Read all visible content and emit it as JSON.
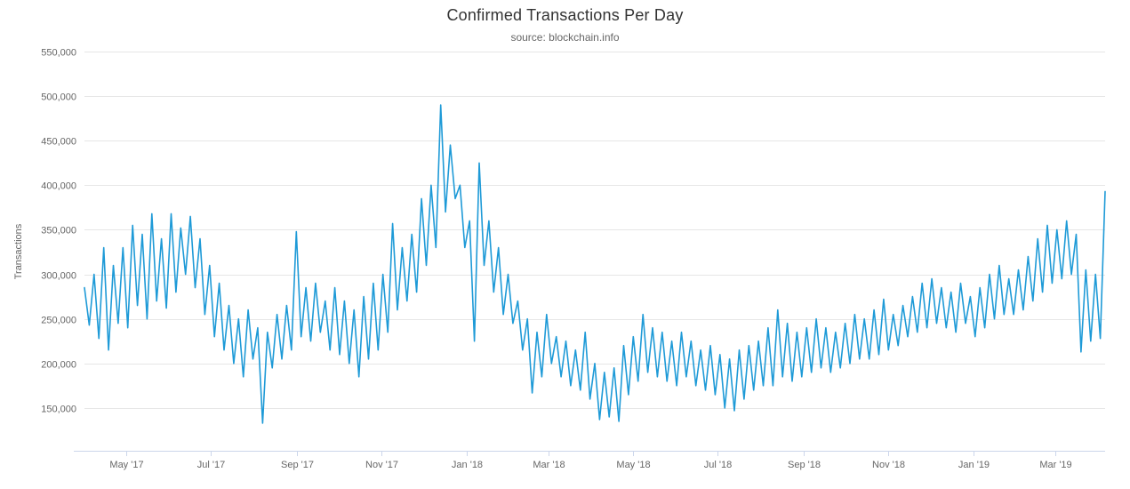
{
  "title": "Confirmed Transactions Per Day",
  "subtitle": "source: blockchain.info",
  "y_axis_title": "Transactions",
  "colors": {
    "line": "#1E9AD7",
    "grid": "#e6e6e6",
    "axis_line": "#ccd6eb",
    "title_text": "#333333",
    "subtitle_text": "#666666",
    "axis_label_text": "#666666"
  },
  "chart_data": {
    "type": "line",
    "title": "Confirmed Transactions Per Day",
    "subtitle": "source: blockchain.info",
    "xlabel": "",
    "ylabel": "Transactions",
    "legend": "none",
    "grid": "horizontal-only",
    "y_ticks": [
      150000,
      200000,
      250000,
      300000,
      350000,
      400000,
      450000,
      500000,
      550000
    ],
    "y_plot_range": [
      102000,
      550000
    ],
    "x_range_days": [
      0,
      735
    ],
    "x_ticks": [
      {
        "label": "May '17",
        "day": 30
      },
      {
        "label": "Jul '17",
        "day": 91
      },
      {
        "label": "Sep '17",
        "day": 153
      },
      {
        "label": "Nov '17",
        "day": 214
      },
      {
        "label": "Jan '18",
        "day": 275
      },
      {
        "label": "Mar '18",
        "day": 334
      },
      {
        "label": "May '18",
        "day": 395
      },
      {
        "label": "Jul '18",
        "day": 456
      },
      {
        "label": "Sep '18",
        "day": 518
      },
      {
        "label": "Nov '18",
        "day": 579
      },
      {
        "label": "Jan '19",
        "day": 640
      },
      {
        "label": "Mar '19",
        "day": 699
      }
    ],
    "values_note": "daily confirmed transactions, sampled ~twice weekly (weekday peak / weekend trough), early Apr 2017 to early Apr 2019",
    "values": [
      285000,
      243000,
      300000,
      228000,
      330000,
      215000,
      310000,
      245000,
      330000,
      240000,
      355000,
      265000,
      345000,
      250000,
      368000,
      270000,
      340000,
      262000,
      368000,
      280000,
      352000,
      300000,
      365000,
      285000,
      340000,
      255000,
      310000,
      230000,
      290000,
      215000,
      265000,
      200000,
      250000,
      185000,
      260000,
      205000,
      240000,
      133000,
      235000,
      195000,
      255000,
      205000,
      265000,
      215000,
      348000,
      230000,
      285000,
      225000,
      290000,
      235000,
      270000,
      215000,
      285000,
      210000,
      270000,
      200000,
      260000,
      185000,
      275000,
      205000,
      290000,
      215000,
      300000,
      235000,
      357000,
      260000,
      330000,
      270000,
      345000,
      280000,
      385000,
      310000,
      400000,
      330000,
      490000,
      370000,
      445000,
      385000,
      400000,
      330000,
      360000,
      225000,
      425000,
      310000,
      360000,
      280000,
      330000,
      255000,
      300000,
      245000,
      270000,
      215000,
      250000,
      167000,
      235000,
      185000,
      255000,
      200000,
      230000,
      185000,
      225000,
      175000,
      215000,
      170000,
      235000,
      160000,
      200000,
      137000,
      190000,
      140000,
      195000,
      135000,
      220000,
      165000,
      230000,
      180000,
      255000,
      190000,
      240000,
      185000,
      235000,
      180000,
      225000,
      175000,
      235000,
      185000,
      225000,
      175000,
      215000,
      170000,
      220000,
      165000,
      210000,
      150000,
      205000,
      147000,
      215000,
      160000,
      220000,
      170000,
      225000,
      175000,
      240000,
      175000,
      260000,
      185000,
      245000,
      180000,
      235000,
      185000,
      240000,
      190000,
      250000,
      195000,
      240000,
      190000,
      235000,
      195000,
      245000,
      200000,
      255000,
      205000,
      250000,
      205000,
      260000,
      210000,
      272000,
      215000,
      255000,
      220000,
      265000,
      230000,
      275000,
      235000,
      290000,
      240000,
      295000,
      245000,
      285000,
      240000,
      280000,
      235000,
      290000,
      245000,
      275000,
      230000,
      285000,
      240000,
      300000,
      250000,
      310000,
      255000,
      295000,
      255000,
      305000,
      260000,
      320000,
      270000,
      340000,
      280000,
      355000,
      290000,
      350000,
      295000,
      360000,
      300000,
      345000,
      213000,
      305000,
      225000,
      300000,
      228000,
      393000
    ]
  }
}
